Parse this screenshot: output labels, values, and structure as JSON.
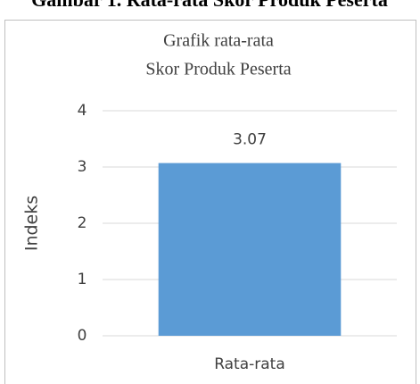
{
  "caption": "Gambar 1. Rata-rata Skor Produk Peserta",
  "chart_data": {
    "type": "bar",
    "title": [
      "Grafik rata-rata",
      "Skor Produk Peserta"
    ],
    "y_label": "Indeks",
    "categories": [
      "Rata-rata"
    ],
    "values": [
      3.07
    ],
    "color": "#5b9bd5",
    "ylim": [
      0,
      4
    ],
    "yticks": [
      0,
      1,
      2,
      3,
      4
    ],
    "grid": true
  }
}
